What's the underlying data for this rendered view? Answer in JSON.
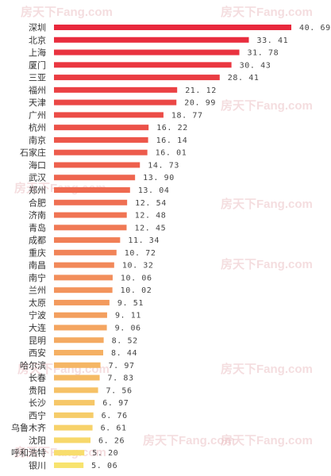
{
  "watermark": [
    "房天下",
    "Fang.com"
  ],
  "chart_data": {
    "type": "bar",
    "orientation": "horizontal",
    "title": "",
    "xlabel": "",
    "ylabel": "",
    "xlim": [
      0,
      40.69
    ],
    "grid": false,
    "legend": "none",
    "colors": {
      "high": "#e8283c",
      "mid": "#f28a5a",
      "low": "#f8e36e"
    },
    "categories": [
      "深圳",
      "北京",
      "上海",
      "厦门",
      "三亚",
      "福州",
      "天津",
      "广州",
      "杭州",
      "南京",
      "石家庄",
      "海口",
      "武汉",
      "郑州",
      "合肥",
      "济南",
      "青岛",
      "成都",
      "重庆",
      "南昌",
      "南宁",
      "兰州",
      "太原",
      "宁波",
      "大连",
      "昆明",
      "西安",
      "哈尔滨",
      "长春",
      "贵阳",
      "长沙",
      "西宁",
      "乌鲁木齐",
      "沈阳",
      "呼和浩特",
      "银川"
    ],
    "values": [
      40.69,
      33.41,
      31.78,
      30.43,
      28.41,
      21.12,
      20.99,
      18.77,
      16.22,
      16.14,
      16.01,
      14.73,
      13.9,
      13.04,
      12.54,
      12.48,
      12.45,
      11.34,
      10.72,
      10.32,
      10.06,
      10.02,
      9.51,
      9.11,
      9.06,
      8.52,
      8.44,
      7.97,
      7.83,
      7.56,
      6.97,
      6.76,
      6.61,
      6.26,
      5.2,
      5.06
    ],
    "value_labels": [
      "40. 69",
      "33. 41",
      "31. 78",
      "30. 43",
      "28. 41",
      "21. 12",
      "20. 99",
      "18. 77",
      "16. 22",
      "16. 14",
      "16. 01",
      "14. 73",
      "13. 90",
      "13. 04",
      "12. 54",
      "12. 48",
      "12. 45",
      "11. 34",
      "10. 72",
      "10. 32",
      "10. 06",
      "10. 02",
      "9. 51",
      "9. 11",
      "9. 06",
      "8. 52",
      "8. 44",
      "7. 97",
      "7. 83",
      "7. 56",
      "6. 97",
      "6. 76",
      "6. 61",
      "6. 26",
      "5. 20",
      "5. 06"
    ]
  }
}
